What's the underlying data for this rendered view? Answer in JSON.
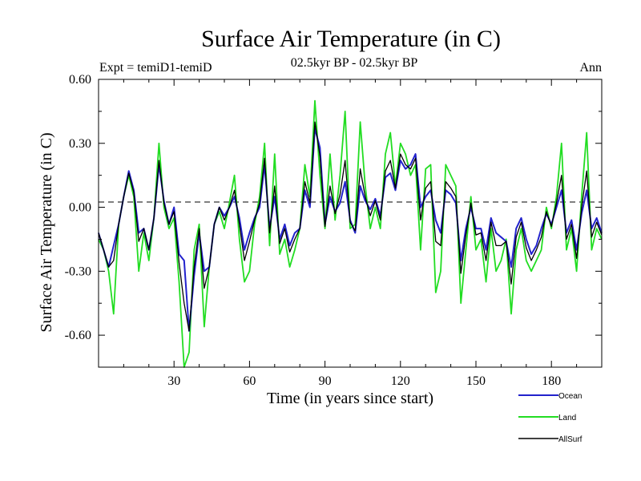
{
  "chart_data": {
    "type": "line",
    "title": "Surface Air Temperature (in C)",
    "subtitle": "02.5kyr BP - 02.5kyr BP",
    "experiment_label": "Expt = temiD1-temiD",
    "period_label": "Ann",
    "xlabel": "Time (in years since start)",
    "ylabel": "Surface Air Temperature (in C)",
    "xlim": [
      0,
      200
    ],
    "ylim": [
      -0.75,
      0.6
    ],
    "x_ticks": [
      30,
      60,
      90,
      120,
      150,
      180
    ],
    "x_tick_labels": [
      "30",
      "60",
      "90",
      "120",
      "150",
      "180"
    ],
    "y_ticks": [
      -0.6,
      -0.3,
      0.0,
      0.3,
      0.6
    ],
    "y_tick_labels": [
      "-0.60",
      "-0.30",
      "0.00",
      "0.30",
      "0.60"
    ],
    "zero_line": "dashed",
    "legend_placement": "bottom-right",
    "x_step": 2,
    "series": [
      {
        "name": "Ocean",
        "color": "#2222cc",
        "values": [
          -0.12,
          -0.2,
          -0.28,
          -0.18,
          -0.08,
          0.05,
          0.17,
          0.08,
          -0.12,
          -0.1,
          -0.2,
          -0.05,
          0.2,
          0.03,
          -0.08,
          0.0,
          -0.22,
          -0.25,
          -0.58,
          -0.32,
          -0.12,
          -0.3,
          -0.28,
          -0.08,
          0.0,
          -0.04,
          0.0,
          0.05,
          -0.05,
          -0.2,
          -0.12,
          -0.05,
          0.0,
          0.2,
          -0.1,
          0.05,
          -0.15,
          -0.08,
          -0.18,
          -0.12,
          -0.1,
          0.08,
          0.0,
          0.37,
          0.28,
          -0.08,
          0.05,
          -0.02,
          0.02,
          0.12,
          -0.06,
          -0.12,
          0.1,
          0.03,
          -0.01,
          0.04,
          -0.04,
          0.14,
          0.16,
          0.08,
          0.22,
          0.18,
          0.2,
          0.25,
          0.0,
          0.05,
          0.08,
          -0.06,
          -0.12,
          0.08,
          0.06,
          0.02,
          -0.25,
          -0.1,
          0.0,
          -0.1,
          -0.1,
          -0.2,
          -0.05,
          -0.12,
          -0.14,
          -0.16,
          -0.28,
          -0.1,
          -0.05,
          -0.15,
          -0.22,
          -0.18,
          -0.1,
          -0.03,
          -0.08,
          0.0,
          0.08,
          -0.12,
          -0.06,
          -0.2,
          -0.03,
          0.08,
          -0.1,
          -0.05,
          -0.12
        ]
      },
      {
        "name": "Land",
        "color": "#22dd22",
        "values": [
          -0.15,
          -0.2,
          -0.3,
          -0.5,
          -0.08,
          0.05,
          0.15,
          0.05,
          -0.3,
          -0.12,
          -0.25,
          -0.05,
          0.3,
          0.0,
          -0.1,
          -0.05,
          -0.35,
          -0.75,
          -0.68,
          -0.2,
          -0.08,
          -0.56,
          -0.28,
          -0.08,
          -0.02,
          -0.1,
          0.02,
          0.15,
          -0.15,
          -0.35,
          -0.3,
          -0.08,
          0.05,
          0.3,
          -0.18,
          0.25,
          -0.22,
          -0.15,
          -0.28,
          -0.2,
          -0.1,
          0.2,
          0.05,
          0.5,
          0.15,
          -0.1,
          0.25,
          -0.06,
          0.15,
          0.45,
          -0.1,
          -0.08,
          0.4,
          0.1,
          -0.1,
          0.0,
          -0.1,
          0.25,
          0.35,
          0.1,
          0.3,
          0.25,
          0.15,
          0.2,
          -0.2,
          0.18,
          0.2,
          -0.4,
          -0.3,
          0.2,
          0.15,
          0.1,
          -0.45,
          -0.2,
          0.05,
          -0.2,
          -0.15,
          -0.35,
          -0.1,
          -0.3,
          -0.25,
          -0.15,
          -0.5,
          -0.2,
          -0.1,
          -0.25,
          -0.3,
          -0.25,
          -0.2,
          0.0,
          -0.1,
          0.05,
          0.3,
          -0.2,
          -0.1,
          -0.3,
          0.05,
          0.35,
          -0.2,
          -0.1,
          -0.15
        ]
      },
      {
        "name": "AllSurf",
        "color": "#000000",
        "values": [
          -0.12,
          -0.2,
          -0.28,
          -0.25,
          -0.08,
          0.05,
          0.16,
          0.07,
          -0.16,
          -0.1,
          -0.2,
          -0.05,
          0.22,
          0.02,
          -0.08,
          -0.02,
          -0.26,
          -0.45,
          -0.58,
          -0.28,
          -0.1,
          -0.38,
          -0.28,
          -0.08,
          0.0,
          -0.06,
          0.0,
          0.08,
          -0.08,
          -0.25,
          -0.16,
          -0.06,
          0.02,
          0.23,
          -0.12,
          0.1,
          -0.17,
          -0.1,
          -0.21,
          -0.15,
          -0.1,
          0.12,
          0.02,
          0.4,
          0.24,
          -0.09,
          0.1,
          -0.03,
          0.06,
          0.22,
          -0.07,
          -0.11,
          0.18,
          0.05,
          -0.04,
          0.03,
          -0.06,
          0.17,
          0.22,
          0.09,
          0.25,
          0.2,
          0.18,
          0.23,
          -0.06,
          0.09,
          0.12,
          -0.16,
          -0.18,
          0.12,
          0.09,
          0.05,
          -0.31,
          -0.13,
          0.02,
          -0.13,
          -0.12,
          -0.25,
          -0.07,
          -0.18,
          -0.18,
          -0.16,
          -0.36,
          -0.14,
          -0.07,
          -0.19,
          -0.25,
          -0.2,
          -0.14,
          -0.02,
          -0.09,
          0.02,
          0.15,
          -0.15,
          -0.08,
          -0.24,
          0.0,
          0.17,
          -0.14,
          -0.07,
          -0.13
        ]
      }
    ]
  }
}
